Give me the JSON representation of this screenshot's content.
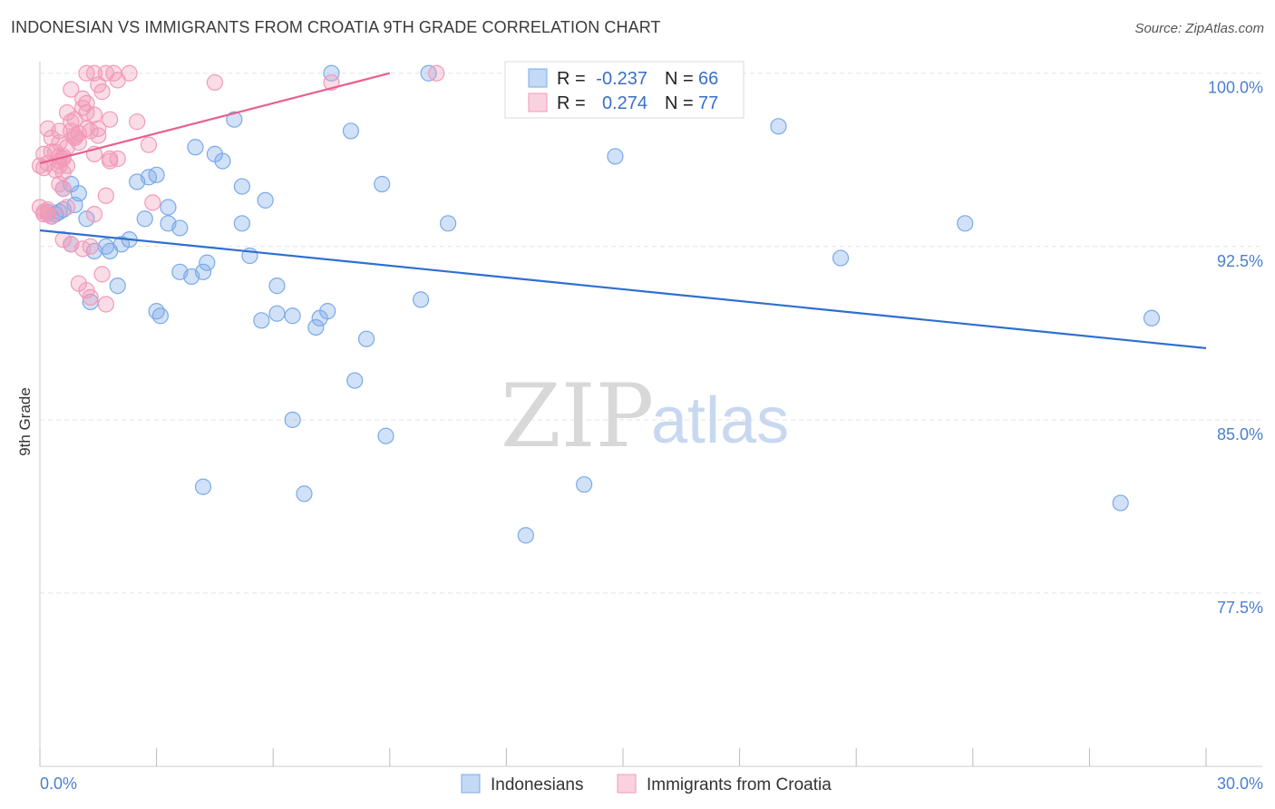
{
  "title": "INDONESIAN VS IMMIGRANTS FROM CROATIA 9TH GRADE CORRELATION CHART",
  "source": "Source: ZipAtlas.com",
  "watermark": {
    "zip": "ZIP",
    "atlas": "atlas"
  },
  "chart_data": {
    "type": "scatter",
    "xlabel": "",
    "ylabel": "9th Grade",
    "xlim": [
      0.0,
      30.0
    ],
    "ylim": [
      70.0,
      100.5
    ],
    "x_tick_labels": [
      "0.0%",
      "30.0%"
    ],
    "y_ticks": [
      100.0,
      92.5,
      85.0,
      77.5
    ],
    "y_tick_labels": [
      "100.0%",
      "92.5%",
      "85.0%",
      "77.5%"
    ],
    "grid": true,
    "legend_position": "top-center",
    "series": [
      {
        "name": "Indonesians",
        "color": "#7aaae8",
        "line_color": "#2f6fd0",
        "R": "-0.237",
        "N": "66",
        "trend": [
          [
            0.0,
            93.2
          ],
          [
            30.0,
            88.1
          ]
        ],
        "points": [
          [
            7.5,
            100.0
          ],
          [
            10.0,
            100.0
          ],
          [
            5.0,
            98.0
          ],
          [
            8.0,
            97.5
          ],
          [
            19.0,
            97.7
          ],
          [
            4.0,
            96.8
          ],
          [
            4.5,
            96.5
          ],
          [
            4.7,
            96.2
          ],
          [
            14.8,
            96.4
          ],
          [
            0.5,
            94.0
          ],
          [
            0.8,
            95.2
          ],
          [
            1.0,
            94.8
          ],
          [
            2.5,
            95.3
          ],
          [
            2.8,
            95.5
          ],
          [
            3.0,
            95.6
          ],
          [
            5.2,
            95.1
          ],
          [
            5.8,
            94.5
          ],
          [
            8.8,
            95.2
          ],
          [
            0.3,
            93.8
          ],
          [
            0.6,
            94.1
          ],
          [
            1.2,
            93.7
          ],
          [
            2.7,
            93.7
          ],
          [
            3.3,
            94.2
          ],
          [
            3.3,
            93.5
          ],
          [
            3.6,
            93.3
          ],
          [
            5.2,
            93.5
          ],
          [
            10.5,
            93.5
          ],
          [
            23.8,
            93.5
          ],
          [
            0.8,
            92.6
          ],
          [
            1.4,
            92.3
          ],
          [
            1.7,
            92.5
          ],
          [
            1.8,
            92.3
          ],
          [
            2.1,
            92.6
          ],
          [
            2.3,
            92.8
          ],
          [
            5.4,
            92.1
          ],
          [
            20.6,
            92.0
          ],
          [
            3.6,
            91.4
          ],
          [
            3.9,
            91.2
          ],
          [
            4.2,
            91.4
          ],
          [
            4.3,
            91.8
          ],
          [
            6.1,
            90.8
          ],
          [
            2.0,
            90.8
          ],
          [
            1.3,
            90.1
          ],
          [
            9.8,
            90.2
          ],
          [
            3.0,
            89.7
          ],
          [
            3.1,
            89.5
          ],
          [
            5.7,
            89.3
          ],
          [
            6.1,
            89.6
          ],
          [
            6.5,
            89.5
          ],
          [
            7.1,
            89.0
          ],
          [
            7.2,
            89.4
          ],
          [
            7.4,
            89.7
          ],
          [
            8.4,
            88.5
          ],
          [
            28.6,
            89.4
          ],
          [
            8.1,
            86.7
          ],
          [
            6.5,
            85.0
          ],
          [
            8.9,
            84.3
          ],
          [
            4.2,
            82.1
          ],
          [
            6.8,
            81.8
          ],
          [
            14.0,
            82.2
          ],
          [
            27.8,
            81.4
          ],
          [
            12.5,
            80.0
          ],
          [
            0.2,
            94.0
          ],
          [
            0.4,
            93.9
          ],
          [
            0.9,
            94.3
          ],
          [
            0.6,
            95.0
          ]
        ]
      },
      {
        "name": "Immigrants from Croatia",
        "color": "#f29ab8",
        "line_color": "#e8608a",
        "R": "0.274",
        "N": "77",
        "trend": [
          [
            0.0,
            96.1
          ],
          [
            9.0,
            100.0
          ]
        ],
        "points": [
          [
            1.2,
            100.0
          ],
          [
            1.4,
            100.0
          ],
          [
            1.7,
            100.0
          ],
          [
            1.9,
            100.0
          ],
          [
            2.3,
            100.0
          ],
          [
            2.0,
            99.7
          ],
          [
            4.5,
            99.6
          ],
          [
            7.5,
            99.6
          ],
          [
            10.2,
            100.0
          ],
          [
            0.8,
            99.3
          ],
          [
            1.5,
            99.5
          ],
          [
            1.6,
            99.2
          ],
          [
            1.1,
            98.9
          ],
          [
            1.1,
            98.5
          ],
          [
            0.7,
            98.3
          ],
          [
            1.2,
            98.3
          ],
          [
            1.4,
            98.2
          ],
          [
            0.8,
            97.9
          ],
          [
            0.9,
            98.0
          ],
          [
            1.8,
            98.0
          ],
          [
            2.5,
            97.9
          ],
          [
            0.2,
            97.6
          ],
          [
            0.5,
            97.5
          ],
          [
            0.8,
            97.5
          ],
          [
            0.9,
            97.3
          ],
          [
            1.0,
            97.4
          ],
          [
            1.2,
            97.6
          ],
          [
            1.3,
            97.5
          ],
          [
            1.5,
            97.6
          ],
          [
            0.3,
            97.2
          ],
          [
            0.5,
            97.0
          ],
          [
            0.7,
            96.8
          ],
          [
            0.9,
            97.2
          ],
          [
            1.0,
            97.0
          ],
          [
            2.8,
            96.9
          ],
          [
            0.1,
            96.5
          ],
          [
            0.3,
            96.6
          ],
          [
            0.5,
            96.4
          ],
          [
            0.5,
            96.2
          ],
          [
            0.6,
            96.3
          ],
          [
            0.7,
            96.0
          ],
          [
            1.4,
            96.5
          ],
          [
            1.8,
            96.3
          ],
          [
            1.8,
            96.2
          ],
          [
            0.0,
            96.0
          ],
          [
            0.1,
            95.9
          ],
          [
            0.2,
            96.1
          ],
          [
            0.4,
            95.8
          ],
          [
            0.5,
            96.0
          ],
          [
            0.6,
            95.7
          ],
          [
            0.5,
            95.2
          ],
          [
            0.6,
            95.0
          ],
          [
            1.7,
            94.7
          ],
          [
            2.9,
            94.4
          ],
          [
            0.0,
            94.2
          ],
          [
            0.1,
            94.0
          ],
          [
            0.3,
            93.8
          ],
          [
            0.7,
            94.2
          ],
          [
            1.4,
            93.9
          ],
          [
            0.1,
            93.9
          ],
          [
            0.2,
            94.1
          ],
          [
            0.6,
            92.8
          ],
          [
            0.8,
            92.6
          ],
          [
            1.1,
            92.4
          ],
          [
            1.3,
            92.5
          ],
          [
            1.6,
            91.3
          ],
          [
            1.0,
            90.9
          ],
          [
            1.2,
            90.6
          ],
          [
            1.3,
            90.3
          ],
          [
            1.7,
            90.0
          ],
          [
            0.2,
            93.9
          ],
          [
            0.9,
            97.2
          ],
          [
            1.5,
            97.3
          ],
          [
            2.0,
            96.3
          ],
          [
            0.4,
            96.6
          ],
          [
            0.6,
            96.4
          ],
          [
            1.2,
            98.7
          ]
        ]
      }
    ]
  }
}
